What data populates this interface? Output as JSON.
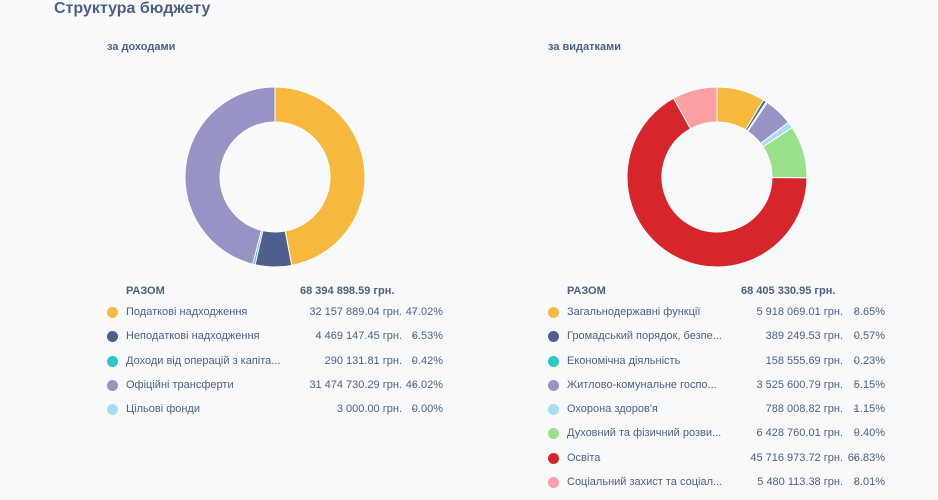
{
  "page": {
    "title": "Структура бюджету"
  },
  "chart_data": [
    {
      "type": "pie",
      "subtitle": "за доходами",
      "total_label": "РАЗОМ",
      "total_value": "68 394 898.59 грн.",
      "categories": [
        "Податкові надходження",
        "Неподаткові надходження",
        "Доходи від операцій з капіта...",
        "Офіційні трансферти",
        "Цільові фонди"
      ],
      "amounts": [
        "32 157 889.04 грн.",
        "4 469 147.45 грн.",
        "290 131.81 грн.",
        "31 474 730.29 грн.",
        "3 000.00 грн."
      ],
      "percent_labels": [
        "47.02%",
        "6.53%",
        "0.42%",
        "46.02%",
        "0.00%"
      ],
      "values": [
        47.02,
        6.53,
        0.42,
        46.02,
        0.0
      ],
      "colors": [
        "#f7b93d",
        "#4e5f8e",
        "#2ec6c8",
        "#9893c5",
        "#a8dcf5"
      ],
      "legend_separator": "-",
      "legend": "bottom"
    },
    {
      "type": "pie",
      "subtitle": "за видатками",
      "total_label": "РАЗОМ",
      "total_value": "68 405 330.95 грн.",
      "categories": [
        "Загальнодержавні функції",
        "Громадський порядок, безпе...",
        "Економічна діяльність",
        "Житлово-комунальне госпо...",
        "Охорона здоров'я",
        "Духовний та фізичний розви...",
        "Освіта",
        "Соціальний захист та соціал..."
      ],
      "amounts": [
        "5 918 069.01 грн.",
        "389 249.53 грн.",
        "158 555.69 грн.",
        "3 525 600.79 грн.",
        "788 008.82 грн.",
        "6 428 760.01 грн.",
        "45 716 973.72 грн.",
        "5 480 113.38 грн."
      ],
      "percent_labels": [
        "8.65%",
        "0.57%",
        "0.23%",
        "5.15%",
        "1.15%",
        "9.40%",
        "66.83%",
        "8.01%"
      ],
      "values": [
        8.65,
        0.57,
        0.23,
        5.15,
        1.15,
        9.4,
        66.83,
        8.01
      ],
      "colors": [
        "#f7b93d",
        "#4e5f8e",
        "#2ec6c8",
        "#9893c5",
        "#a8dcf5",
        "#98e08a",
        "#d6262b",
        "#fa9fa2"
      ],
      "legend_separator": "-",
      "legend": "bottom"
    }
  ]
}
